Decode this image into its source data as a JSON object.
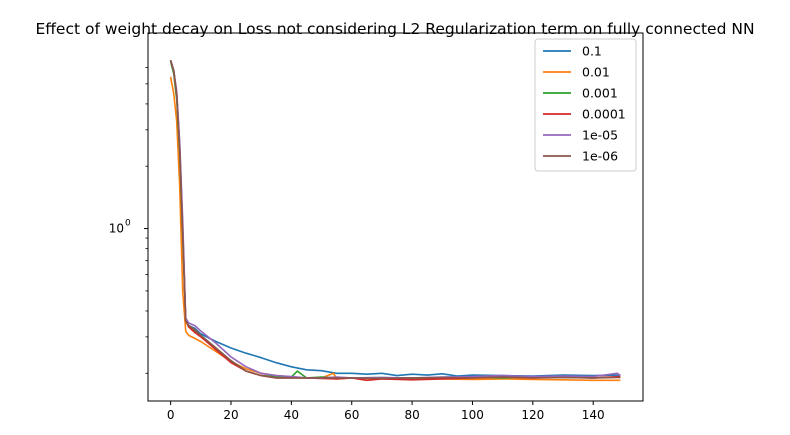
{
  "chart_data": {
    "type": "line",
    "title": "Effect of weight decay on Loss not considering L2 Regularization term on fully connected NN",
    "xlabel": "",
    "ylabel": "",
    "yscale": "log",
    "xlim": [
      -7.5,
      156.5
    ],
    "ylim": [
      0.147,
      8.8
    ],
    "xticks": [
      0,
      20,
      40,
      60,
      80,
      100,
      120,
      140
    ],
    "yticks_major": [
      {
        "value": 1,
        "label": "10^0"
      }
    ],
    "yticks_minor": [
      0.2,
      0.3,
      0.4,
      0.5,
      0.6,
      0.7,
      0.8,
      0.9,
      2,
      3,
      4,
      5,
      6
    ],
    "grid": false,
    "legend_position": "top-right",
    "series": [
      {
        "name": "0.1",
        "color": "#1f77b4",
        "points": [
          [
            0,
            6.5
          ],
          [
            1,
            5.8
          ],
          [
            2,
            4.5
          ],
          [
            3,
            2.5
          ],
          [
            4,
            1.0
          ],
          [
            5,
            0.36
          ],
          [
            6,
            0.34
          ],
          [
            8,
            0.33
          ],
          [
            10,
            0.31
          ],
          [
            15,
            0.285
          ],
          [
            20,
            0.265
          ],
          [
            25,
            0.25
          ],
          [
            30,
            0.238
          ],
          [
            35,
            0.225
          ],
          [
            40,
            0.215
          ],
          [
            45,
            0.208
          ],
          [
            50,
            0.206
          ],
          [
            55,
            0.2
          ],
          [
            60,
            0.2
          ],
          [
            65,
            0.198
          ],
          [
            70,
            0.2
          ],
          [
            75,
            0.195
          ],
          [
            80,
            0.198
          ],
          [
            85,
            0.196
          ],
          [
            90,
            0.199
          ],
          [
            95,
            0.194
          ],
          [
            100,
            0.196
          ],
          [
            110,
            0.195
          ],
          [
            120,
            0.194
          ],
          [
            130,
            0.196
          ],
          [
            140,
            0.195
          ],
          [
            149,
            0.196
          ]
        ]
      },
      {
        "name": "0.01",
        "color": "#ff7f0e",
        "points": [
          [
            0,
            5.4
          ],
          [
            1,
            4.5
          ],
          [
            2,
            3.3
          ],
          [
            3,
            1.6
          ],
          [
            4,
            0.5
          ],
          [
            5,
            0.32
          ],
          [
            6,
            0.305
          ],
          [
            8,
            0.295
          ],
          [
            10,
            0.285
          ],
          [
            15,
            0.255
          ],
          [
            20,
            0.228
          ],
          [
            25,
            0.21
          ],
          [
            30,
            0.2
          ],
          [
            35,
            0.195
          ],
          [
            40,
            0.192
          ],
          [
            45,
            0.19
          ],
          [
            50,
            0.19
          ],
          [
            54,
            0.2
          ],
          [
            55,
            0.188
          ],
          [
            60,
            0.19
          ],
          [
            70,
            0.188
          ],
          [
            80,
            0.19
          ],
          [
            90,
            0.188
          ],
          [
            100,
            0.187
          ],
          [
            110,
            0.188
          ],
          [
            120,
            0.187
          ],
          [
            130,
            0.186
          ],
          [
            140,
            0.185
          ],
          [
            149,
            0.185
          ]
        ]
      },
      {
        "name": "0.001",
        "color": "#2ca02c",
        "points": [
          [
            0,
            6.4
          ],
          [
            1,
            5.6
          ],
          [
            2,
            4.2
          ],
          [
            3,
            2.3
          ],
          [
            4,
            0.9
          ],
          [
            5,
            0.36
          ],
          [
            6,
            0.335
          ],
          [
            8,
            0.32
          ],
          [
            10,
            0.305
          ],
          [
            15,
            0.265
          ],
          [
            20,
            0.23
          ],
          [
            25,
            0.205
          ],
          [
            30,
            0.195
          ],
          [
            35,
            0.193
          ],
          [
            40,
            0.192
          ],
          [
            42,
            0.205
          ],
          [
            45,
            0.19
          ],
          [
            50,
            0.192
          ],
          [
            55,
            0.19
          ],
          [
            60,
            0.19
          ],
          [
            70,
            0.191
          ],
          [
            80,
            0.189
          ],
          [
            90,
            0.19
          ],
          [
            100,
            0.192
          ],
          [
            110,
            0.19
          ],
          [
            120,
            0.192
          ],
          [
            130,
            0.191
          ],
          [
            140,
            0.19
          ],
          [
            149,
            0.192
          ]
        ]
      },
      {
        "name": "0.0001",
        "color": "#d62728",
        "points": [
          [
            0,
            6.5
          ],
          [
            1,
            5.8
          ],
          [
            2,
            4.5
          ],
          [
            3,
            2.5
          ],
          [
            4,
            1.0
          ],
          [
            5,
            0.36
          ],
          [
            6,
            0.335
          ],
          [
            8,
            0.315
          ],
          [
            10,
            0.3
          ],
          [
            15,
            0.26
          ],
          [
            20,
            0.225
          ],
          [
            25,
            0.205
          ],
          [
            30,
            0.195
          ],
          [
            35,
            0.19
          ],
          [
            40,
            0.19
          ],
          [
            45,
            0.19
          ],
          [
            50,
            0.189
          ],
          [
            55,
            0.188
          ],
          [
            60,
            0.19
          ],
          [
            65,
            0.185
          ],
          [
            70,
            0.188
          ],
          [
            80,
            0.186
          ],
          [
            90,
            0.188
          ],
          [
            100,
            0.19
          ],
          [
            110,
            0.192
          ],
          [
            120,
            0.19
          ],
          [
            130,
            0.192
          ],
          [
            140,
            0.19
          ],
          [
            149,
            0.193
          ]
        ]
      },
      {
        "name": "1e-05",
        "color": "#9467bd",
        "points": [
          [
            0,
            6.5
          ],
          [
            1,
            5.8
          ],
          [
            2,
            4.6
          ],
          [
            3,
            2.6
          ],
          [
            4,
            1.1
          ],
          [
            5,
            0.37
          ],
          [
            6,
            0.35
          ],
          [
            8,
            0.34
          ],
          [
            10,
            0.32
          ],
          [
            15,
            0.28
          ],
          [
            20,
            0.24
          ],
          [
            25,
            0.215
          ],
          [
            30,
            0.2
          ],
          [
            35,
            0.195
          ],
          [
            40,
            0.193
          ],
          [
            45,
            0.19
          ],
          [
            50,
            0.19
          ],
          [
            55,
            0.192
          ],
          [
            60,
            0.19
          ],
          [
            70,
            0.191
          ],
          [
            80,
            0.19
          ],
          [
            90,
            0.192
          ],
          [
            100,
            0.193
          ],
          [
            110,
            0.195
          ],
          [
            120,
            0.193
          ],
          [
            130,
            0.194
          ],
          [
            140,
            0.193
          ],
          [
            148,
            0.2
          ],
          [
            149,
            0.195
          ]
        ]
      },
      {
        "name": "1e-06",
        "color": "#8c564b",
        "points": [
          [
            0,
            6.5
          ],
          [
            1,
            5.8
          ],
          [
            2,
            4.4
          ],
          [
            3,
            2.4
          ],
          [
            4,
            0.95
          ],
          [
            5,
            0.36
          ],
          [
            6,
            0.34
          ],
          [
            8,
            0.325
          ],
          [
            10,
            0.305
          ],
          [
            15,
            0.265
          ],
          [
            20,
            0.23
          ],
          [
            25,
            0.205
          ],
          [
            30,
            0.195
          ],
          [
            35,
            0.19
          ],
          [
            40,
            0.19
          ],
          [
            45,
            0.19
          ],
          [
            50,
            0.19
          ],
          [
            55,
            0.19
          ],
          [
            60,
            0.19
          ],
          [
            70,
            0.189
          ],
          [
            80,
            0.19
          ],
          [
            90,
            0.191
          ],
          [
            100,
            0.19
          ],
          [
            110,
            0.192
          ],
          [
            120,
            0.19
          ],
          [
            130,
            0.191
          ],
          [
            140,
            0.19
          ],
          [
            149,
            0.191
          ]
        ]
      }
    ]
  }
}
